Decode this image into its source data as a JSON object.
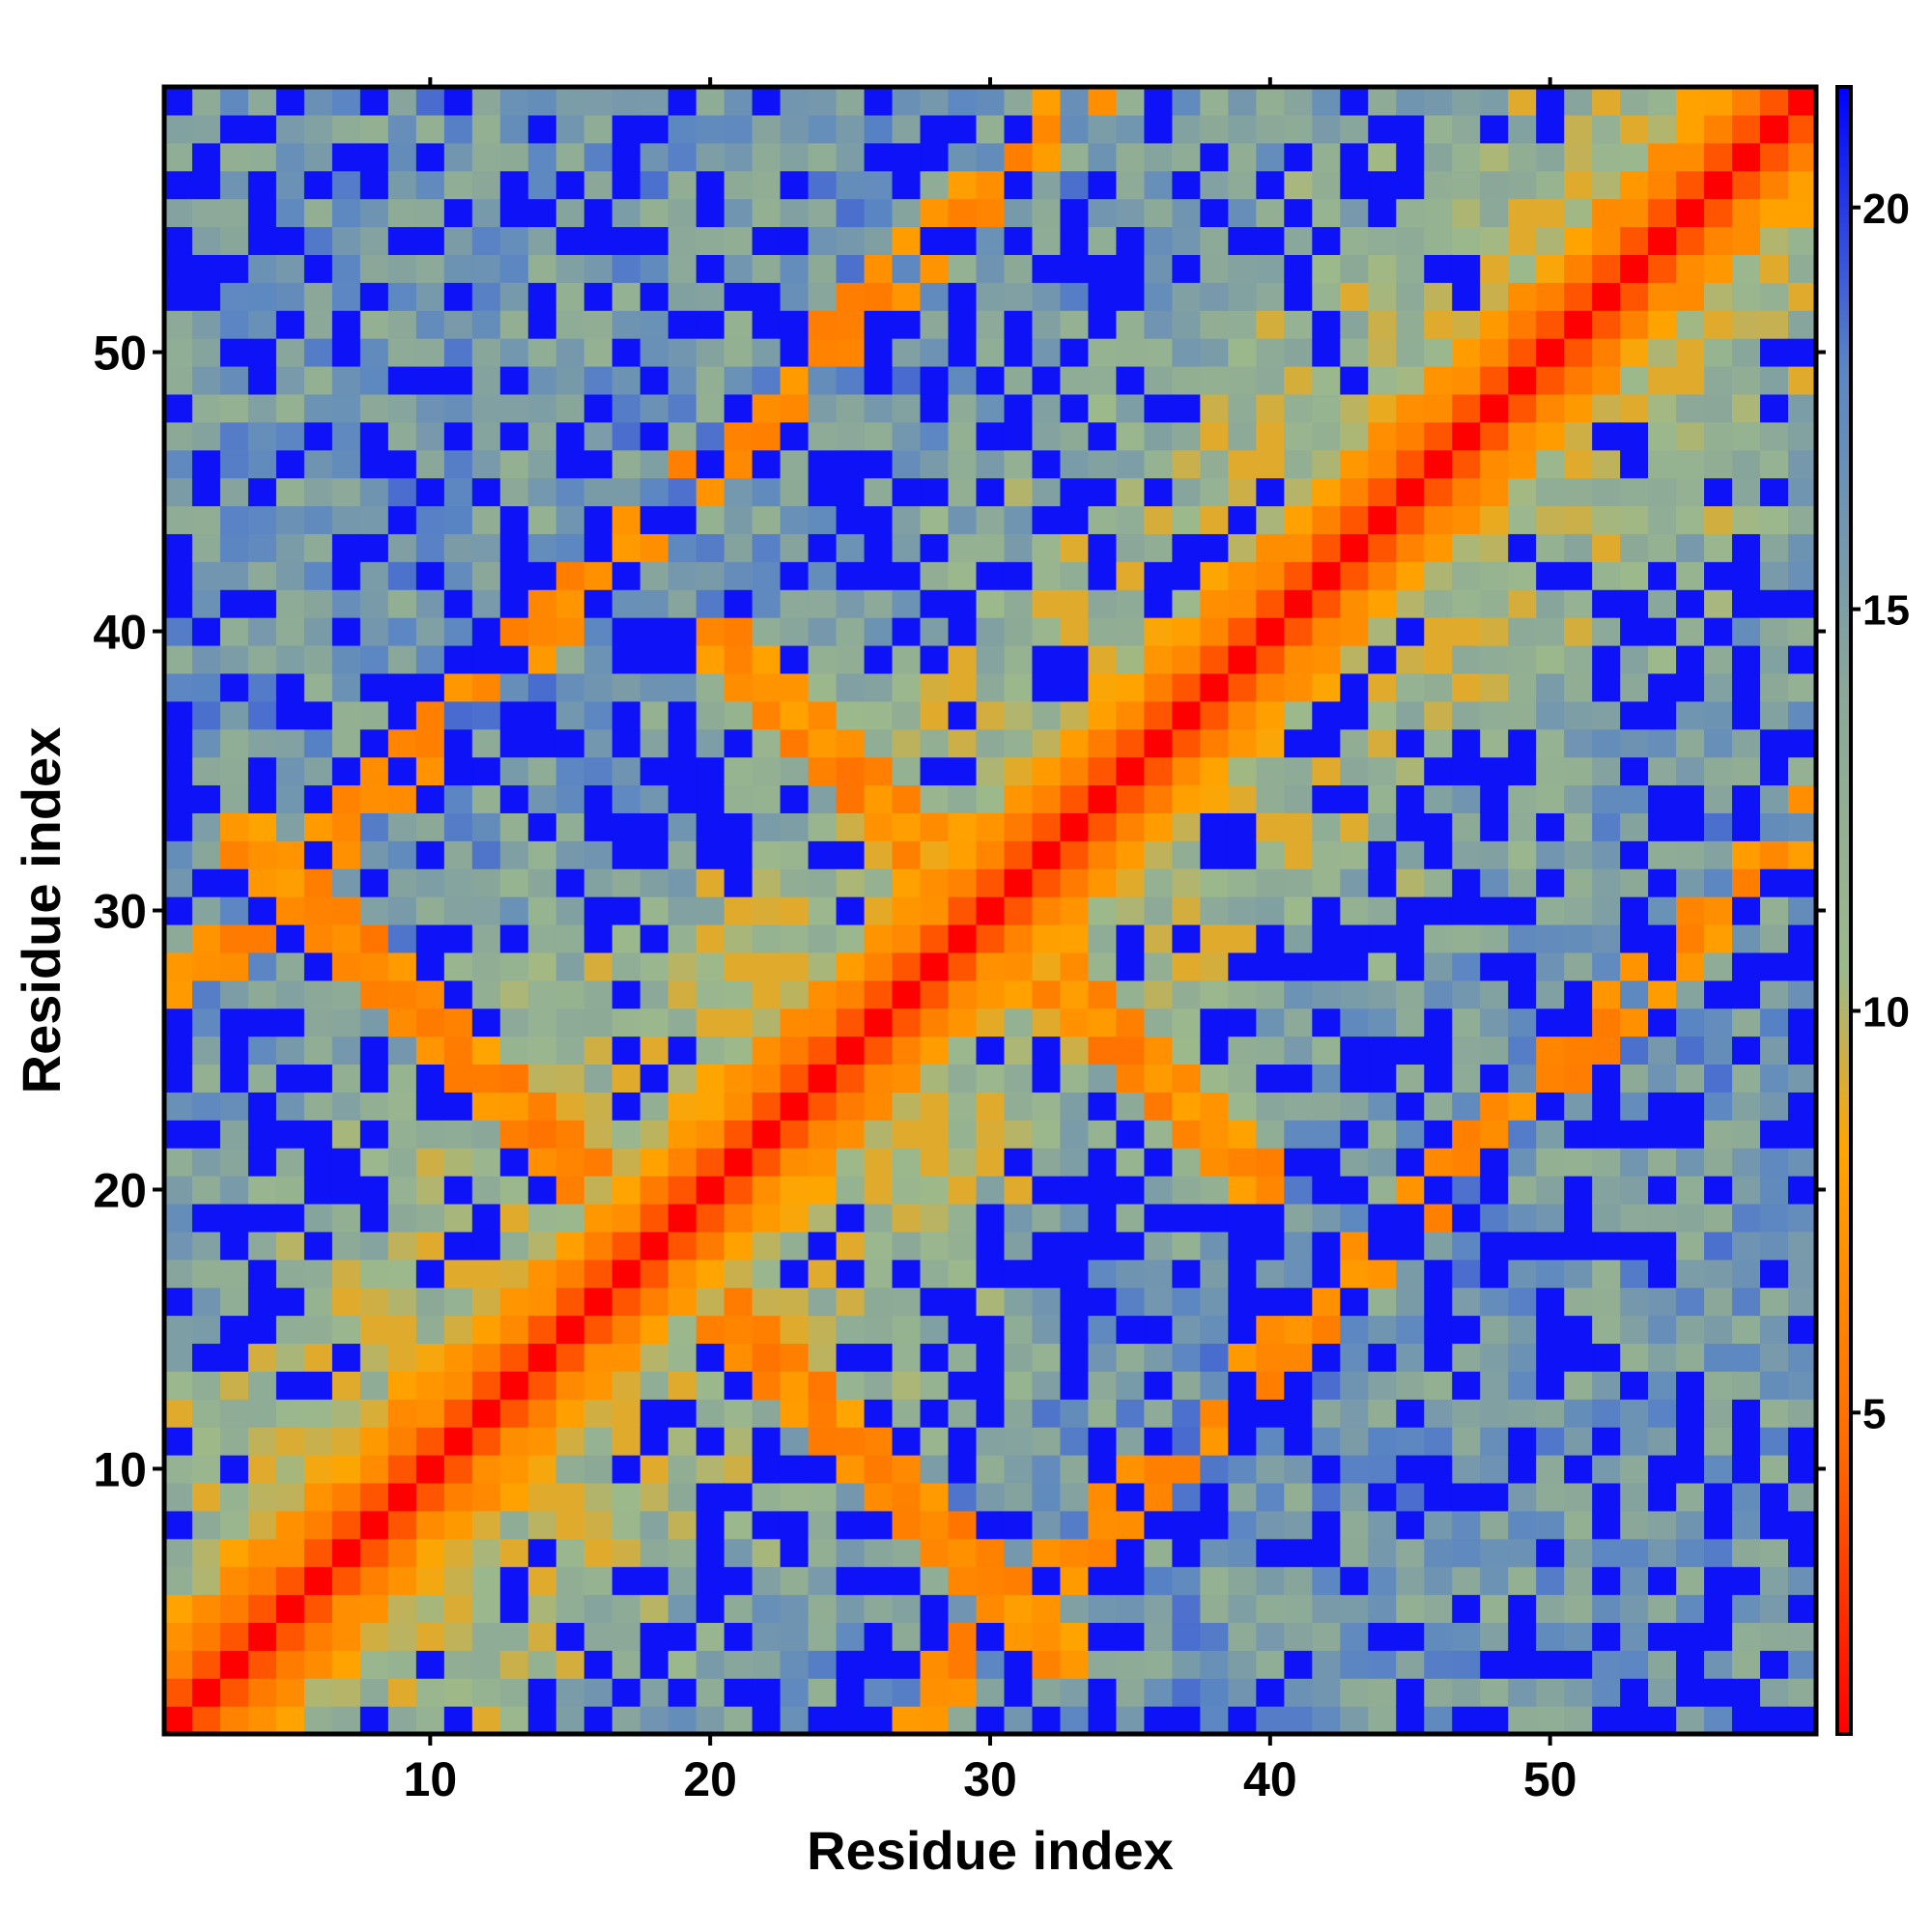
{
  "chart_data": {
    "type": "heatmap",
    "xlabel": "Residue index",
    "ylabel": "Residue index",
    "n_residues": 59,
    "x_range": [
      0.5,
      59.5
    ],
    "y_range": [
      0.5,
      59.5
    ],
    "x_ticks": [
      10,
      20,
      30,
      40,
      50
    ],
    "y_ticks": [
      10,
      20,
      30,
      40,
      50
    ],
    "colorbar": {
      "range": [
        1,
        21.5
      ],
      "ticks": [
        5,
        10,
        15,
        20
      ],
      "stops": [
        {
          "value": 1,
          "color": "#ff0000"
        },
        {
          "value": 4.5,
          "color": "#ff6a00"
        },
        {
          "value": 8.3,
          "color": "#ffa500"
        },
        {
          "value": 10.5,
          "color": "#9cb98c"
        },
        {
          "value": 14,
          "color": "#8aa79a"
        },
        {
          "value": 18,
          "color": "#5b86c3"
        },
        {
          "value": 21.5,
          "color": "#0000ff"
        }
      ]
    },
    "matrix_rule": "symmetric contact map; value depends on |i-j|: 0-1 red (~1-3.8), 2-4 orange (~5-8), beyond that mixed green/steel-blue (~9-19) with blue (>20) patches; secondary bands near anti-diagonal i+j~36 and i+j~60 and parallel i-j~26",
    "values_note": "Values read approximately from the colormap."
  }
}
